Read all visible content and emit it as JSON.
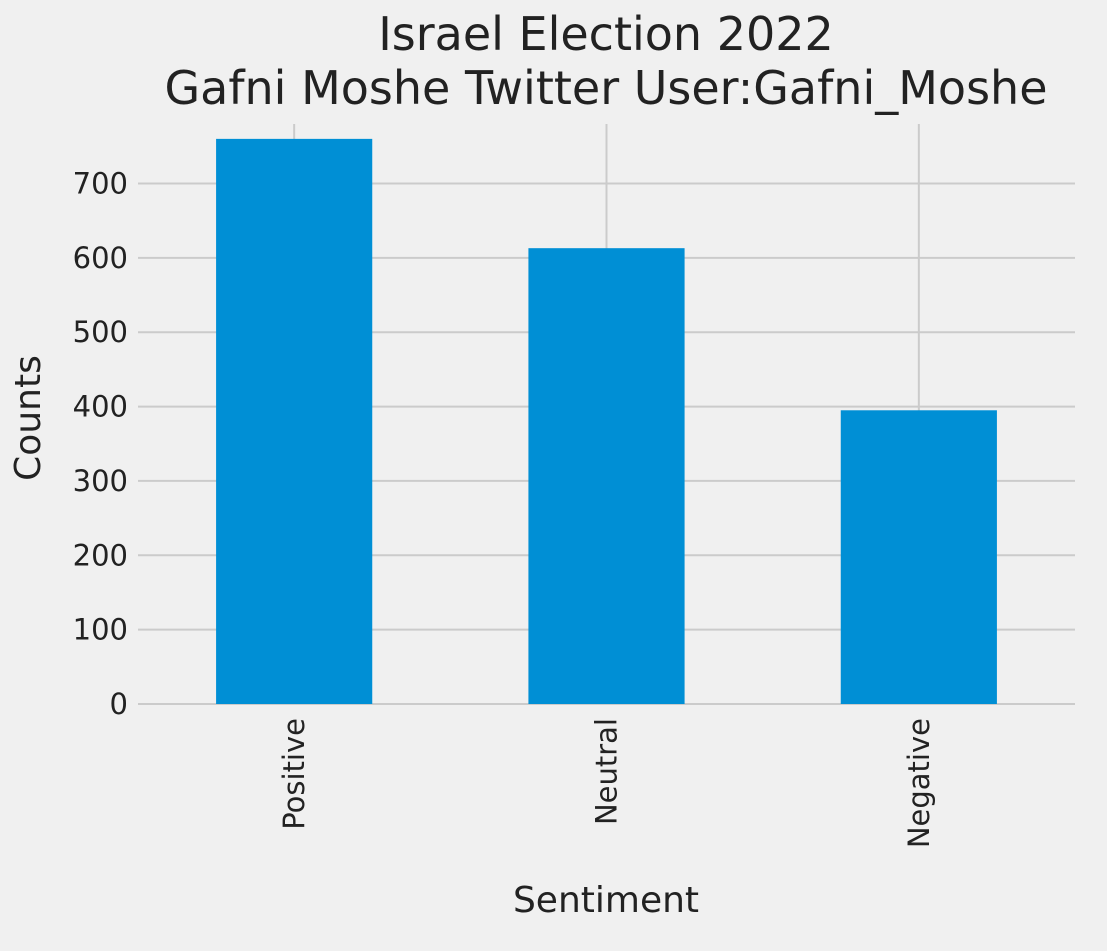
{
  "chart_data": {
    "type": "bar",
    "title": [
      "Israel Election 2022",
      "Gafni Moshe Twitter User:Gafni_Moshe"
    ],
    "xlabel": "Sentiment",
    "ylabel": "Counts",
    "categories": [
      "Positive",
      "Neutral",
      "Negative"
    ],
    "values": [
      760,
      613,
      395
    ],
    "ylim": [
      0,
      780
    ],
    "yticks": [
      0,
      100,
      200,
      300,
      400,
      500,
      600,
      700
    ],
    "grid": true,
    "bar_color": "#008fd5",
    "background_color": "#f0f0f0"
  }
}
